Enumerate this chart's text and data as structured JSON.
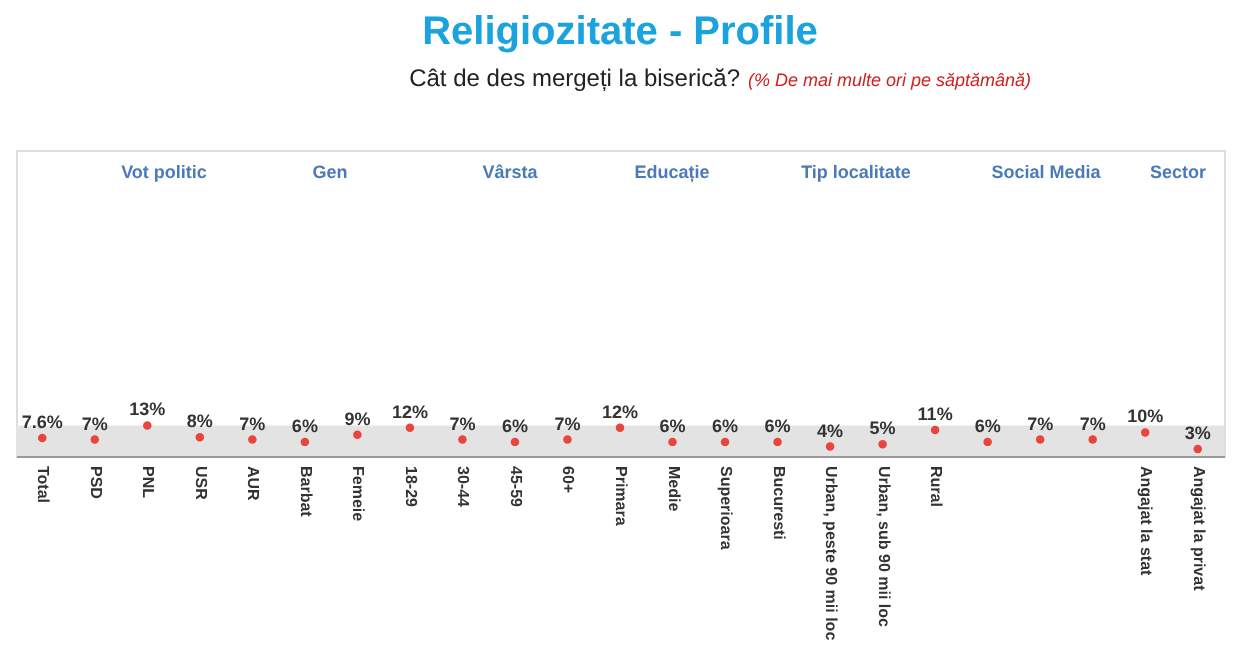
{
  "chart_data": {
    "type": "scatter",
    "title": "Religiozitate - Profile",
    "subtitle": "Cât de des mergeți la biserică?",
    "annotations": [
      "(% De mai multe ori pe săptămână)",
      "Vot politic",
      "Gen",
      "Vârsta",
      "Educație",
      "Tip localitate",
      "Social Media",
      "Sector"
    ],
    "categories": [
      "Total",
      "PSD",
      "PNL",
      "USR",
      "AUR",
      "Barbat",
      "Femeie",
      "18-29",
      "30-44",
      "45-59",
      "60+",
      "Primara",
      "Medie",
      "Superioara",
      "Bucuresti",
      "Urban, peste 90 mii loc",
      "Urban, sub 90 mii loc",
      "Rural",
      null,
      null,
      null,
      "Angajat la stat",
      "Angajat la privat"
    ],
    "series": [
      {
        "color": "#e8463c",
        "values": [
          7.6,
          7,
          13,
          8,
          7,
          6,
          9,
          12,
          7,
          6,
          7,
          12,
          6,
          6,
          6,
          4,
          5,
          11,
          6,
          7,
          7,
          10,
          3
        ],
        "value_labels": [
          "7.6%",
          "7%",
          "13%",
          "8%",
          "7%",
          "6%",
          "9%",
          "12%",
          "7%",
          "6%",
          "7%",
          "12%",
          "6%",
          "6%",
          "6%",
          "4%",
          "5%",
          "11%",
          "6%",
          "7%",
          "7%",
          "10%",
          "3%"
        ]
      }
    ],
    "marker": "circle",
    "ylim": [
      0,
      130
    ],
    "tick_labels": "x",
    "grid": false,
    "bands": [
      {
        "axis": "y",
        "from": 0,
        "to": 13,
        "color": "#e3e3e3"
      }
    ]
  }
}
